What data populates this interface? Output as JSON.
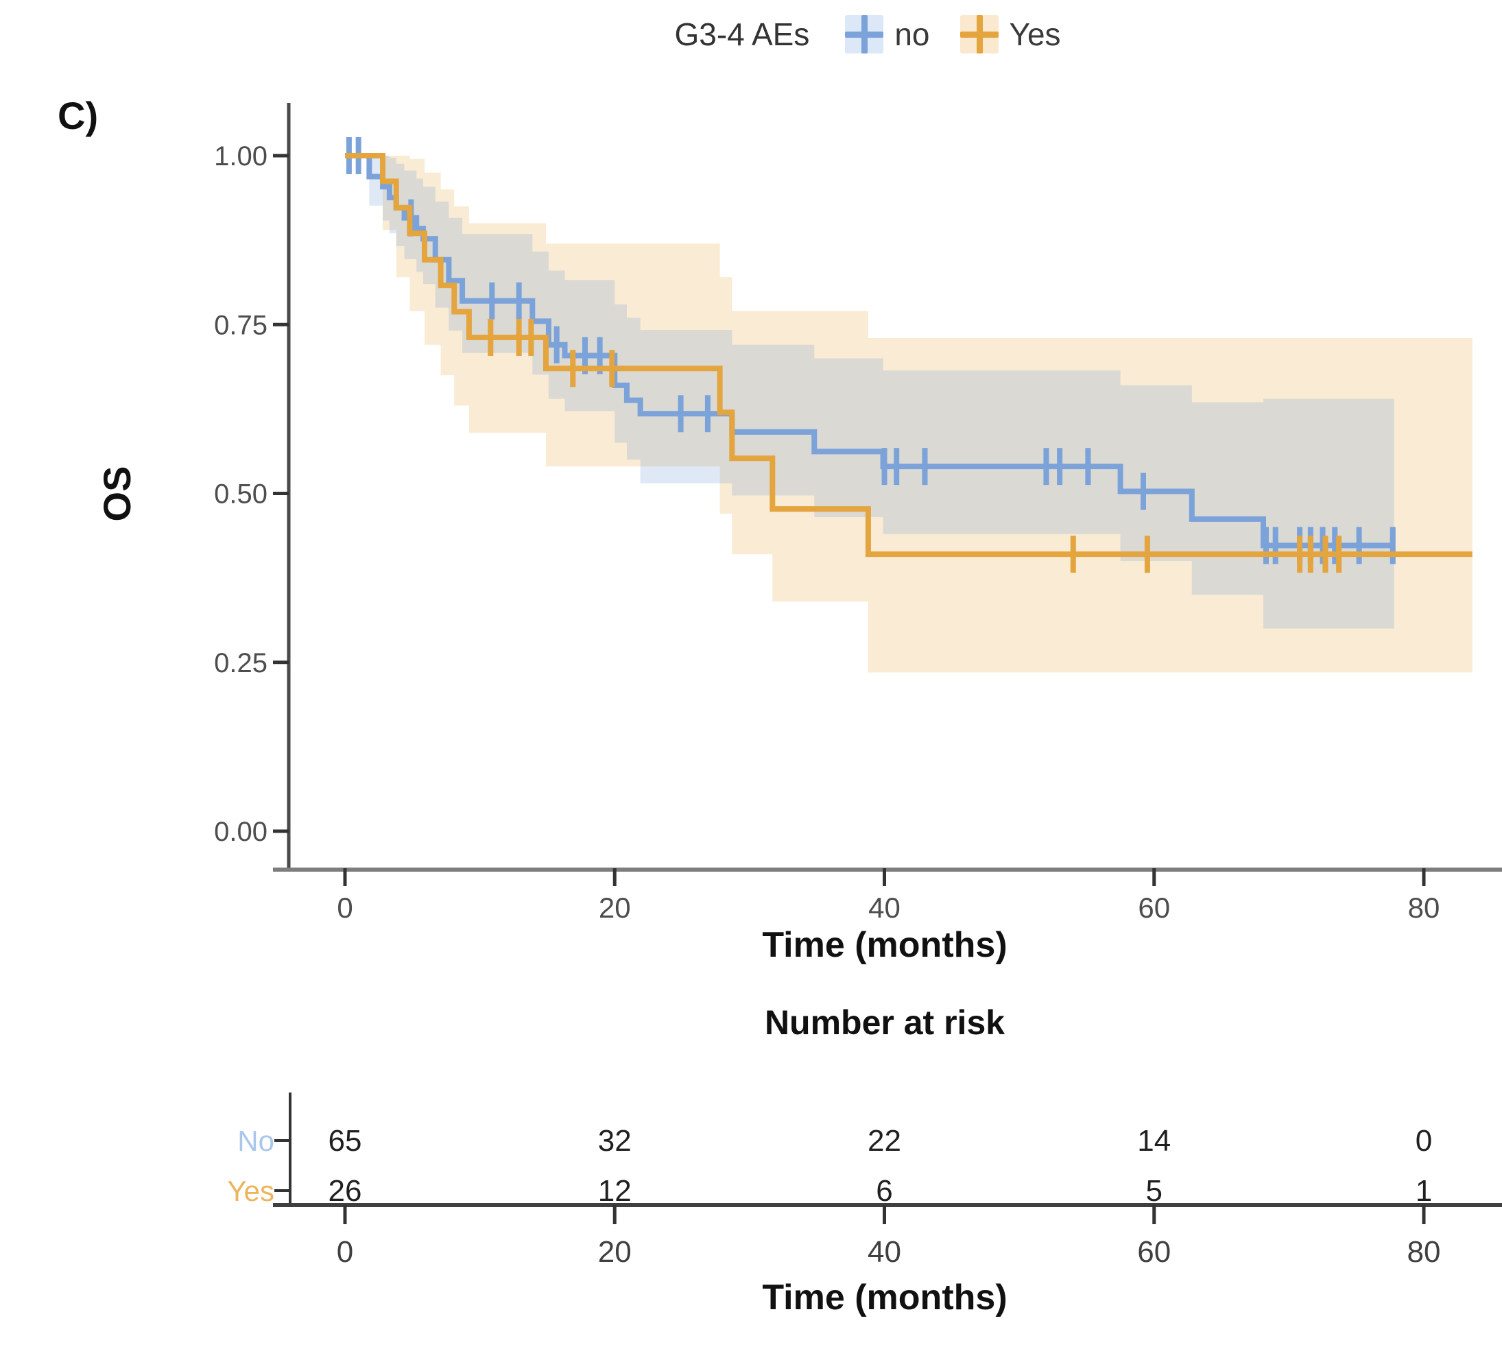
{
  "panel_label": "C)",
  "legend": {
    "title": "G3-4 AEs",
    "items": [
      {
        "label": "no",
        "color": "#7BA2D9",
        "key_bg": "#DCE8F8"
      },
      {
        "label": "Yes",
        "color": "#E4A43E",
        "key_bg": "#FAE9CE"
      }
    ]
  },
  "axes": {
    "y_label": "OS",
    "x_label": "Time (months)"
  },
  "risk_table": {
    "title": "Number at risk",
    "x_label": "Time (months)",
    "rows": [
      {
        "label": "No",
        "label_color": "#A9C6EC",
        "counts": [
          65,
          32,
          22,
          14,
          0
        ]
      },
      {
        "label": "Yes",
        "label_color": "#EDB45C",
        "counts": [
          26,
          12,
          6,
          5,
          1
        ]
      }
    ]
  },
  "chart_data": {
    "type": "line",
    "subtype": "kaplan-meier-step",
    "title": "G3-4 AEs",
    "xlabel": "Time (months)",
    "ylabel": "OS",
    "xlim": [
      -4.2,
      85.8
    ],
    "ylim": [
      0,
      1.0
    ],
    "grid": false,
    "legend_position": "top",
    "x_ticks": [
      {
        "label": "0",
        "t": 0
      },
      {
        "label": "20",
        "t": 20
      },
      {
        "label": "40",
        "t": 40
      },
      {
        "label": "60",
        "t": 60
      },
      {
        "label": "80",
        "t": 80
      }
    ],
    "y_ticks": [
      {
        "label": "1.00",
        "s": 1.0
      },
      {
        "label": "0.75",
        "s": 0.75
      },
      {
        "label": "0.50",
        "s": 0.5
      },
      {
        "label": "0.25",
        "s": 0.25
      },
      {
        "label": "0.00",
        "s": 0.0
      }
    ],
    "series": [
      {
        "name": "no",
        "color": "#7BA2D9",
        "band_color": "#6E9BD6",
        "band_opacity": 0.22,
        "end": 77.8,
        "steps": [
          [
            0,
            1.0
          ],
          [
            1.8,
            0.969
          ],
          [
            2.8,
            0.954
          ],
          [
            3.3,
            0.938
          ],
          [
            3.8,
            0.923
          ],
          [
            4.4,
            0.908
          ],
          [
            5.3,
            0.892
          ],
          [
            5.8,
            0.877
          ],
          [
            6.7,
            0.846
          ],
          [
            7.7,
            0.815
          ],
          [
            8.7,
            0.785
          ],
          [
            13.9,
            0.755
          ],
          [
            15.1,
            0.72
          ],
          [
            16.3,
            0.704
          ],
          [
            20.0,
            0.66
          ],
          [
            20.9,
            0.638
          ],
          [
            21.9,
            0.618
          ],
          [
            28.7,
            0.591
          ],
          [
            34.8,
            0.562
          ],
          [
            39.9,
            0.54
          ],
          [
            57.5,
            0.503
          ],
          [
            62.8,
            0.462
          ],
          [
            68.1,
            0.423
          ]
        ],
        "censors": [
          0.3,
          1.0,
          4.9,
          10.9,
          12.9,
          15.7,
          17.8,
          18.9,
          24.9,
          26.9,
          40.0,
          40.9,
          43.0,
          52.0,
          53.0,
          55.1,
          59.2,
          68.3,
          69.0,
          70.8,
          71.6,
          72.5,
          73.4,
          75.2,
          77.7
        ],
        "band": [
          [
            0,
            1.0,
            1.0
          ],
          [
            1.8,
            1.0,
            0.926
          ],
          [
            2.8,
            1.0,
            0.904
          ],
          [
            3.3,
            0.997,
            0.885
          ],
          [
            3.8,
            0.988,
            0.866
          ],
          [
            4.4,
            0.978,
            0.847
          ],
          [
            5.3,
            0.966,
            0.828
          ],
          [
            5.8,
            0.954,
            0.81
          ],
          [
            6.7,
            0.932,
            0.775
          ],
          [
            7.7,
            0.908,
            0.741
          ],
          [
            8.7,
            0.884,
            0.708
          ],
          [
            13.9,
            0.858,
            0.676
          ],
          [
            15.1,
            0.83,
            0.64
          ],
          [
            16.3,
            0.816,
            0.622
          ],
          [
            20.0,
            0.78,
            0.575
          ],
          [
            20.9,
            0.76,
            0.55
          ],
          [
            21.9,
            0.742,
            0.515
          ],
          [
            28.7,
            0.72,
            0.497
          ],
          [
            34.8,
            0.7,
            0.465
          ],
          [
            39.9,
            0.682,
            0.44
          ],
          [
            57.5,
            0.66,
            0.4
          ],
          [
            62.8,
            0.635,
            0.35
          ],
          [
            68.1,
            0.64,
            0.3
          ]
        ]
      },
      {
        "name": "Yes",
        "color": "#E4A43E",
        "band_color": "#E2A33C",
        "band_opacity": 0.22,
        "end": 83.6,
        "steps": [
          [
            0,
            1.0
          ],
          [
            2.8,
            0.962
          ],
          [
            3.8,
            0.923
          ],
          [
            4.8,
            0.885
          ],
          [
            5.9,
            0.846
          ],
          [
            7.1,
            0.808
          ],
          [
            8.1,
            0.769
          ],
          [
            9.2,
            0.731
          ],
          [
            14.9,
            0.685
          ],
          [
            27.8,
            0.62
          ],
          [
            28.7,
            0.552
          ],
          [
            31.7,
            0.477
          ],
          [
            38.8,
            0.41
          ]
        ],
        "censors": [
          10.8,
          12.9,
          13.8,
          16.9,
          19.8,
          54.0,
          59.5,
          70.8,
          71.6,
          72.7,
          73.7
        ],
        "band": [
          [
            0,
            1.0,
            1.0
          ],
          [
            2.8,
            1.0,
            0.89
          ],
          [
            3.8,
            1.0,
            0.82
          ],
          [
            4.8,
            0.995,
            0.77
          ],
          [
            5.9,
            0.975,
            0.72
          ],
          [
            7.1,
            0.95,
            0.675
          ],
          [
            8.1,
            0.925,
            0.63
          ],
          [
            9.2,
            0.9,
            0.59
          ],
          [
            14.9,
            0.87,
            0.54
          ],
          [
            27.8,
            0.82,
            0.47
          ],
          [
            28.7,
            0.77,
            0.41
          ],
          [
            31.7,
            0.77,
            0.34
          ],
          [
            38.8,
            0.73,
            0.235
          ]
        ]
      }
    ],
    "number_at_risk": {
      "title": "Number at risk",
      "times": [
        0,
        20,
        40,
        60,
        80
      ],
      "groups": [
        {
          "name": "No",
          "counts": [
            65,
            32,
            22,
            14,
            0
          ]
        },
        {
          "name": "Yes",
          "counts": [
            26,
            12,
            6,
            5,
            1
          ]
        }
      ]
    }
  }
}
